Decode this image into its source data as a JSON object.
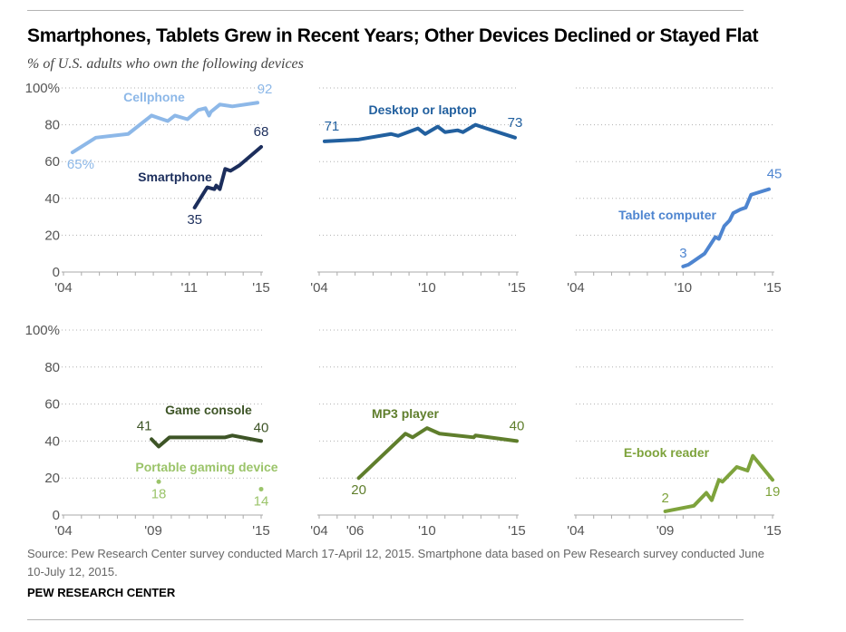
{
  "header": {
    "title": "Smartphones, Tablets Grew in Recent Years; Other Devices Declined or Stayed Flat",
    "subtitle": "% of U.S. adults who own the following devices"
  },
  "footer": {
    "source": "Source:  Pew Research Center survey conducted March 17-April 12, 2015. Smartphone data based on Pew Research survey conducted June 10-July 12, 2015.",
    "org": "PEW RESEARCH CENTER"
  },
  "colors": {
    "cellphone": "#8db8e8",
    "smartphone": "#1c2e5c",
    "desktop": "#22609f",
    "tablet": "#4e85d0",
    "game_console": "#3d5426",
    "portable_gaming": "#9bc46a",
    "mp3": "#5f7e2c",
    "ebook": "#7ea33c",
    "axis_text": "#555555",
    "grid": "#b0b0b0"
  },
  "chart_data": [
    {
      "type": "line",
      "panel": "top-left",
      "ylim": [
        0,
        100
      ],
      "xlim": [
        2004,
        2015
      ],
      "yticks": [
        "0",
        "20",
        "40",
        "60",
        "80",
        "100%"
      ],
      "xticks": [
        {
          "x": 2004,
          "label": "'04"
        },
        {
          "x": 2011,
          "label": "'11"
        },
        {
          "x": 2015,
          "label": "'15"
        }
      ],
      "grid": true,
      "series": [
        {
          "name": "Cellphone",
          "color_key": "cellphone",
          "x": [
            2004.5,
            2005.8,
            2007.6,
            2008.9,
            2009.8,
            2010.2,
            2010.9,
            2011.5,
            2011.9,
            2012.1,
            2012.2,
            2012.7,
            2013.4,
            2014.8
          ],
          "values": [
            65,
            73,
            75,
            85,
            82,
            85,
            83,
            88,
            89,
            85,
            87,
            91,
            90,
            92
          ],
          "start_label": "65%",
          "end_label": "92"
        },
        {
          "name": "Smartphone",
          "color_key": "smartphone",
          "x": [
            2011.3,
            2012.0,
            2012.4,
            2012.5,
            2012.7,
            2013.0,
            2013.3,
            2013.8,
            2015.0
          ],
          "values": [
            35,
            46,
            45,
            47,
            45,
            56,
            55,
            58,
            68
          ],
          "start_label": "35",
          "end_label": "68"
        }
      ]
    },
    {
      "type": "line",
      "panel": "top-middle",
      "ylim": [
        0,
        100
      ],
      "xlim": [
        2004,
        2015
      ],
      "xticks": [
        {
          "x": 2004,
          "label": "'04"
        },
        {
          "x": 2010,
          "label": "'10"
        },
        {
          "x": 2015,
          "label": "'15"
        }
      ],
      "grid": true,
      "series": [
        {
          "name": "Desktop or laptop",
          "color_key": "desktop",
          "x": [
            2004.3,
            2006.2,
            2008.0,
            2008.4,
            2009.5,
            2009.9,
            2010.6,
            2011.0,
            2011.7,
            2012.0,
            2012.7,
            2013.3,
            2014.9
          ],
          "values": [
            71,
            72,
            75,
            74,
            78,
            75,
            79,
            76,
            77,
            76,
            80,
            78,
            73
          ],
          "start_label": "71",
          "end_label": "73"
        }
      ]
    },
    {
      "type": "line",
      "panel": "top-right",
      "ylim": [
        0,
        100
      ],
      "xlim": [
        2004,
        2015
      ],
      "xticks": [
        {
          "x": 2004,
          "label": "'04"
        },
        {
          "x": 2010,
          "label": "'10"
        },
        {
          "x": 2015,
          "label": "'15"
        }
      ],
      "grid": true,
      "series": [
        {
          "name": "Tablet computer",
          "color_key": "tablet",
          "x": [
            2010.0,
            2010.3,
            2011.2,
            2011.8,
            2012.0,
            2012.3,
            2012.6,
            2012.8,
            2013.2,
            2013.5,
            2013.8,
            2014.8
          ],
          "values": [
            3,
            4,
            10,
            19,
            18,
            25,
            28,
            32,
            34,
            35,
            42,
            45
          ],
          "start_label": "3",
          "end_label": "45"
        }
      ]
    },
    {
      "type": "line",
      "panel": "bottom-left",
      "ylim": [
        0,
        100
      ],
      "xlim": [
        2004,
        2015
      ],
      "yticks": [
        "0",
        "20",
        "40",
        "60",
        "80",
        "100%"
      ],
      "xticks": [
        {
          "x": 2004,
          "label": "'04"
        },
        {
          "x": 2009,
          "label": "'09"
        },
        {
          "x": 2015,
          "label": "'15"
        }
      ],
      "grid": true,
      "series": [
        {
          "name": "Game console",
          "color_key": "game_console",
          "x": [
            2008.9,
            2009.3,
            2009.9,
            2010.6,
            2013.0,
            2013.4,
            2015.0
          ],
          "values": [
            41,
            37,
            42,
            42,
            42,
            43,
            40
          ],
          "start_label": "41",
          "end_label": "40"
        },
        {
          "name": "Portable gaming device",
          "color_key": "portable_gaming",
          "points_only": true,
          "x": [
            2009.3,
            2015.0
          ],
          "values": [
            18,
            14
          ],
          "start_label": "18",
          "end_label": "14"
        }
      ]
    },
    {
      "type": "line",
      "panel": "bottom-middle",
      "ylim": [
        0,
        100
      ],
      "xlim": [
        2004,
        2015
      ],
      "xticks": [
        {
          "x": 2004,
          "label": "'04"
        },
        {
          "x": 2006,
          "label": "'06"
        },
        {
          "x": 2010,
          "label": "'10"
        },
        {
          "x": 2015,
          "label": "'15"
        }
      ],
      "grid": true,
      "series": [
        {
          "name": "MP3 player",
          "color_key": "mp3",
          "x": [
            2006.2,
            2008.8,
            2009.2,
            2010.0,
            2010.7,
            2012.6,
            2012.7,
            2015.0
          ],
          "values": [
            20,
            44,
            42,
            47,
            44,
            42,
            43,
            40
          ],
          "start_label": "20",
          "end_label": "40"
        }
      ]
    },
    {
      "type": "line",
      "panel": "bottom-right",
      "ylim": [
        0,
        100
      ],
      "xlim": [
        2004,
        2015
      ],
      "xticks": [
        {
          "x": 2004,
          "label": "'04"
        },
        {
          "x": 2009,
          "label": "'09"
        },
        {
          "x": 2015,
          "label": "'15"
        }
      ],
      "grid": true,
      "series": [
        {
          "name": "E-book reader",
          "color_key": "ebook",
          "x": [
            2009.0,
            2010.6,
            2011.3,
            2011.6,
            2012.0,
            2012.2,
            2013.0,
            2013.6,
            2013.9,
            2015.0
          ],
          "values": [
            2,
            5,
            12,
            8,
            19,
            18,
            26,
            24,
            32,
            19
          ],
          "start_label": "2",
          "end_label": "19"
        }
      ]
    }
  ]
}
